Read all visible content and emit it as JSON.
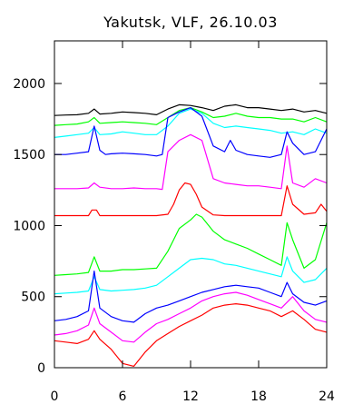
{
  "chart_data": {
    "type": "line",
    "title": "Yakutsk, VLF, 26.10.03",
    "xlabel": "",
    "ylabel": "",
    "xlim": [
      0,
      24
    ],
    "ylim": [
      0,
      2300
    ],
    "grid": false,
    "x_ticks": [
      0,
      6,
      12,
      18,
      24
    ],
    "x_tick_labels": [
      "0",
      "6",
      "12",
      "18",
      "24"
    ],
    "y_ticks": [
      0,
      500,
      1000,
      1500,
      2000
    ],
    "y_tick_labels": [
      "0",
      "500",
      "1000",
      "1500",
      "2000"
    ],
    "series": [
      {
        "color": "#000000",
        "x": [
          0,
          1,
          2,
          3,
          3.5,
          4,
          5,
          6,
          7,
          8,
          9,
          10,
          11,
          12,
          13,
          14,
          15,
          16,
          17,
          18,
          19,
          20,
          21,
          22,
          23,
          24
        ],
        "y": [
          1775,
          1778,
          1780,
          1790,
          1820,
          1785,
          1790,
          1800,
          1795,
          1790,
          1780,
          1820,
          1850,
          1845,
          1830,
          1810,
          1840,
          1850,
          1830,
          1830,
          1820,
          1810,
          1820,
          1800,
          1810,
          1790
        ]
      },
      {
        "color": "#00ff00",
        "x": [
          0,
          1,
          2,
          3,
          3.5,
          4,
          5,
          6,
          7,
          8,
          9,
          10,
          11,
          12,
          13,
          14,
          15,
          16,
          17,
          18,
          19,
          20,
          21,
          22,
          23,
          24
        ],
        "y": [
          1705,
          1710,
          1715,
          1730,
          1760,
          1720,
          1725,
          1730,
          1725,
          1720,
          1710,
          1760,
          1810,
          1830,
          1800,
          1760,
          1770,
          1790,
          1770,
          1760,
          1760,
          1750,
          1750,
          1730,
          1760,
          1730
        ]
      },
      {
        "color": "#00ffff",
        "x": [
          0,
          1,
          2,
          3,
          3.5,
          4,
          5,
          6,
          7,
          8,
          9,
          10,
          11,
          12,
          13,
          14,
          15,
          16,
          17,
          18,
          19,
          20,
          21,
          22,
          23,
          24
        ],
        "y": [
          1620,
          1630,
          1640,
          1650,
          1690,
          1640,
          1645,
          1660,
          1650,
          1640,
          1640,
          1700,
          1790,
          1820,
          1790,
          1720,
          1690,
          1700,
          1690,
          1680,
          1670,
          1650,
          1660,
          1640,
          1680,
          1650
        ]
      },
      {
        "color": "#0000ff",
        "x": [
          0,
          1,
          2,
          3,
          3.5,
          4,
          4.5,
          5,
          6,
          7,
          8,
          9,
          9.5,
          10,
          11,
          12,
          13,
          14,
          15,
          15.5,
          16,
          17,
          18,
          19,
          20,
          20.5,
          21,
          22,
          23,
          24
        ],
        "y": [
          1500,
          1500,
          1510,
          1520,
          1700,
          1530,
          1500,
          1505,
          1510,
          1505,
          1500,
          1490,
          1500,
          1760,
          1800,
          1830,
          1770,
          1560,
          1520,
          1600,
          1530,
          1500,
          1490,
          1480,
          1500,
          1660,
          1580,
          1500,
          1520,
          1680
        ]
      },
      {
        "color": "#ff00ff",
        "x": [
          0,
          1,
          2,
          3,
          3.5,
          4,
          5,
          6,
          7,
          8,
          9,
          9.5,
          10,
          11,
          12,
          13,
          14,
          15,
          16,
          17,
          18,
          19,
          20,
          20.5,
          21,
          22,
          23,
          24
        ],
        "y": [
          1260,
          1260,
          1260,
          1265,
          1300,
          1270,
          1260,
          1260,
          1265,
          1260,
          1260,
          1255,
          1520,
          1600,
          1640,
          1600,
          1330,
          1300,
          1290,
          1280,
          1280,
          1270,
          1260,
          1560,
          1300,
          1270,
          1330,
          1300
        ]
      },
      {
        "color": "#ff0000",
        "x": [
          0,
          3,
          3.3,
          3.7,
          4,
          6,
          9,
          10,
          10.5,
          11,
          11.5,
          12,
          12.5,
          13,
          14,
          15,
          18,
          20,
          20.5,
          21,
          22,
          23,
          23.5,
          24
        ],
        "y": [
          1070,
          1070,
          1110,
          1110,
          1070,
          1070,
          1070,
          1080,
          1150,
          1250,
          1300,
          1290,
          1220,
          1130,
          1075,
          1070,
          1070,
          1070,
          1280,
          1150,
          1080,
          1090,
          1150,
          1100
        ]
      },
      {
        "color": "#00ff00",
        "x": [
          0,
          1,
          2,
          3,
          3.5,
          4,
          5,
          6,
          7,
          8,
          9,
          10,
          10.5,
          11,
          12,
          12.5,
          13,
          14,
          15,
          16,
          17,
          18,
          19,
          20,
          20.5,
          21,
          22,
          23,
          24
        ],
        "y": [
          650,
          655,
          660,
          670,
          780,
          680,
          680,
          690,
          690,
          695,
          700,
          820,
          900,
          980,
          1040,
          1080,
          1060,
          960,
          900,
          870,
          840,
          800,
          760,
          720,
          1020,
          900,
          700,
          760,
          1020
        ]
      },
      {
        "color": "#00ffff",
        "x": [
          0,
          1,
          2,
          3,
          3.5,
          4,
          5,
          6,
          7,
          8,
          9,
          10,
          11,
          12,
          13,
          14,
          15,
          16,
          17,
          18,
          19,
          20,
          20.5,
          21,
          22,
          23,
          24
        ],
        "y": [
          520,
          525,
          530,
          540,
          640,
          550,
          540,
          545,
          550,
          560,
          580,
          640,
          700,
          760,
          770,
          760,
          730,
          720,
          700,
          680,
          660,
          640,
          780,
          680,
          600,
          620,
          700
        ]
      },
      {
        "color": "#0000ff",
        "x": [
          0,
          1,
          2,
          3,
          3.5,
          4,
          5,
          6,
          7,
          8,
          9,
          10,
          11,
          12,
          13,
          14,
          15,
          16,
          17,
          18,
          19,
          20,
          20.5,
          21,
          22,
          23,
          24
        ],
        "y": [
          330,
          340,
          360,
          400,
          680,
          420,
          360,
          330,
          320,
          380,
          420,
          440,
          470,
          500,
          530,
          550,
          570,
          580,
          570,
          560,
          530,
          500,
          600,
          520,
          460,
          440,
          470
        ]
      },
      {
        "color": "#ff00ff",
        "x": [
          0,
          1,
          2,
          3,
          3.5,
          4,
          5,
          6,
          7,
          8,
          9,
          10,
          11,
          12,
          13,
          14,
          15,
          16,
          17,
          18,
          19,
          20,
          21,
          22,
          23,
          24
        ],
        "y": [
          230,
          240,
          260,
          300,
          420,
          310,
          250,
          190,
          180,
          250,
          310,
          340,
          380,
          420,
          470,
          500,
          520,
          530,
          510,
          480,
          450,
          420,
          500,
          400,
          340,
          320
        ]
      },
      {
        "color": "#ff0000",
        "x": [
          0,
          1,
          2,
          3,
          3.5,
          4,
          5,
          6,
          7,
          8,
          9,
          10,
          11,
          12,
          13,
          14,
          15,
          16,
          17,
          18,
          19,
          20,
          21,
          22,
          23,
          24
        ],
        "y": [
          190,
          180,
          170,
          200,
          260,
          200,
          130,
          30,
          10,
          110,
          190,
          240,
          290,
          330,
          370,
          420,
          440,
          450,
          440,
          420,
          400,
          360,
          400,
          340,
          270,
          250
        ]
      }
    ]
  }
}
